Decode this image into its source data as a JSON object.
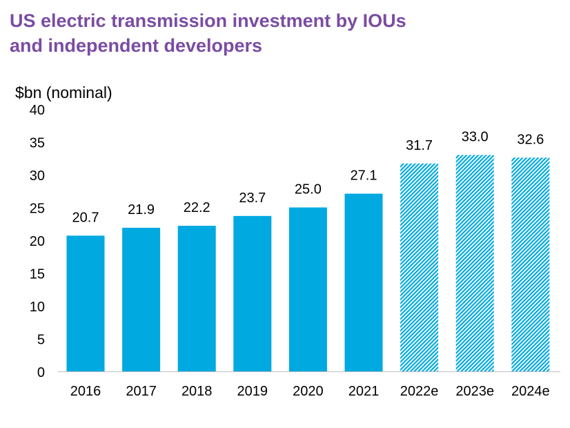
{
  "chart_data": {
    "type": "bar",
    "title": [
      "US electric transmission investment by IOUs",
      "and independent developers"
    ],
    "ylabel": "$bn (nominal)",
    "xlabel": "",
    "categories": [
      "2016",
      "2017",
      "2018",
      "2019",
      "2020",
      "2021",
      "2022e",
      "2023e",
      "2024e"
    ],
    "values": [
      20.7,
      21.9,
      22.2,
      23.7,
      25.0,
      27.1,
      31.7,
      33.0,
      32.6
    ],
    "data_labels": [
      "20.7",
      "21.9",
      "22.2",
      "23.7",
      "25.0",
      "27.1",
      "31.7",
      "33.0",
      "32.6"
    ],
    "estimated": [
      false,
      false,
      false,
      false,
      false,
      false,
      true,
      true,
      true
    ],
    "ylim": [
      0,
      40
    ],
    "yticks": [
      "0",
      "5",
      "10",
      "15",
      "20",
      "25",
      "30",
      "35",
      "40"
    ],
    "grid": false,
    "colors": {
      "bar": "#00A9E0",
      "title": "#7A4CA3",
      "estimate_pattern": "diagonal hatch #00A9E0 on white"
    }
  }
}
